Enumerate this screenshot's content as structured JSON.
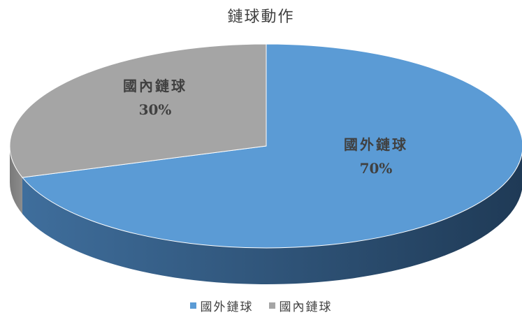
{
  "chart_data": {
    "type": "pie",
    "title": "鏈球動作",
    "slices": [
      {
        "label": "國外鏈球",
        "value": 70,
        "value_label": "70%",
        "color": "#5b9bd5"
      },
      {
        "label": "國內鏈球",
        "value": 30,
        "value_label": "30%",
        "color": "#a5a5a5"
      }
    ],
    "legend": {
      "position": "bottom",
      "entries": [
        "國外鏈球",
        "國內鏈球"
      ]
    },
    "style": "3d"
  }
}
